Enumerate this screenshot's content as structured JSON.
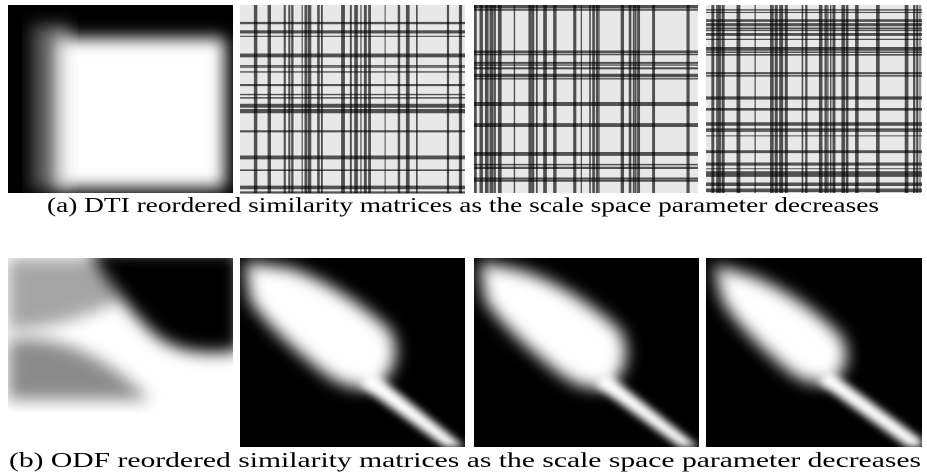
{
  "figure": {
    "panels": [
      {
        "caption": "(a) DTI reordered similarity matrices as the scale space parameter decreases"
      },
      {
        "caption": "(b) ODF reordered similarity matrices as the scale space parameter decreases"
      }
    ]
  }
}
